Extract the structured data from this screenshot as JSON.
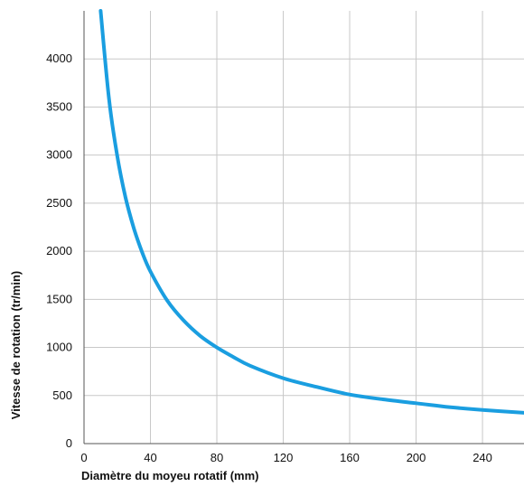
{
  "chart_data": {
    "type": "line",
    "xlabel": "Diamètre du moyeu rotatif (mm)",
    "ylabel": "Vitesse de rotation (tr/min)",
    "xlim": [
      0,
      265
    ],
    "ylim": [
      0,
      4500
    ],
    "x_ticks": [
      "0",
      "40",
      "80",
      "120",
      "160",
      "200",
      "240"
    ],
    "y_ticks": [
      "0",
      "500",
      "1000",
      "1500",
      "2000",
      "2500",
      "3000",
      "3500",
      "4000"
    ],
    "grid": true,
    "color": "#1a9ee0",
    "series": [
      {
        "x": [
          10,
          15,
          20,
          25,
          30,
          35,
          40,
          50,
          60,
          70,
          80,
          90,
          100,
          120,
          140,
          160,
          180,
          200,
          220,
          240,
          265
        ],
        "y": [
          4500,
          3590,
          2990,
          2560,
          2240,
          1990,
          1790,
          1490,
          1280,
          1120,
          1000,
          900,
          810,
          680,
          590,
          510,
          460,
          420,
          380,
          350,
          320
        ]
      }
    ]
  }
}
